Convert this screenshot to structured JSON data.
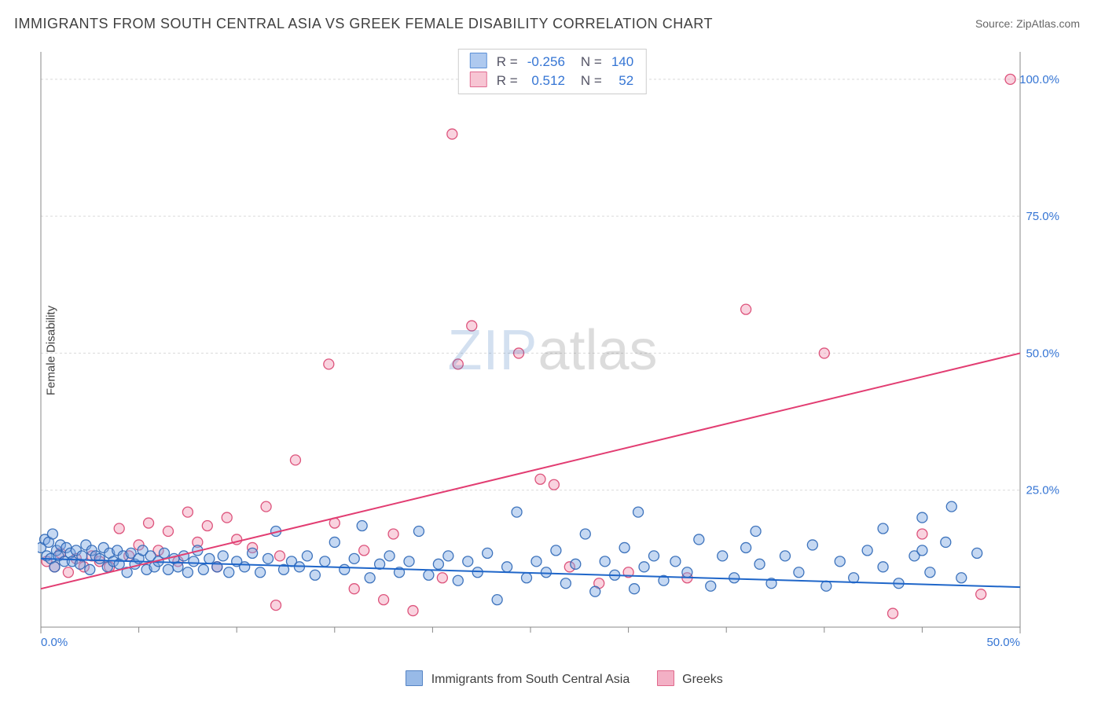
{
  "title": "IMMIGRANTS FROM SOUTH CENTRAL ASIA VS GREEK FEMALE DISABILITY CORRELATION CHART",
  "source_label": "Source: ",
  "source_site": "ZipAtlas.com",
  "ylabel": "Female Disability",
  "watermark": {
    "left": "ZIP",
    "right": "atlas"
  },
  "legend_bottom": {
    "series1_label": "Immigrants from South Central Asia",
    "series2_label": "Greeks"
  },
  "stats_box": {
    "rows": [
      {
        "swatch_fill": "#aec9ef",
        "swatch_stroke": "#5a8fd6",
        "R_label": "R =",
        "R_val": "-0.256",
        "N_label": "N =",
        "N_val": "140"
      },
      {
        "swatch_fill": "#f7c5d3",
        "swatch_stroke": "#e16a90",
        "R_label": "R =",
        "R_val": "0.512",
        "N_label": "N =",
        "N_val": "52"
      }
    ]
  },
  "chart": {
    "type": "scatter",
    "background_color": "#ffffff",
    "grid_color": "#d9d9d9",
    "grid_dash": "3,3",
    "axis_color": "#888888",
    "axis_label_color": "#3575d4",
    "xlim": [
      0,
      50
    ],
    "ylim": [
      0,
      105
    ],
    "x_ticks": [
      {
        "v": 0,
        "label": "0.0%"
      },
      {
        "v": 50,
        "label": "50.0%"
      }
    ],
    "x_minor_ticks": [
      5,
      10,
      15,
      20,
      25,
      30,
      35,
      40,
      45
    ],
    "y_ticks": [
      {
        "v": 25,
        "label": "25.0%"
      },
      {
        "v": 50,
        "label": "50.0%"
      },
      {
        "v": 75,
        "label": "75.0%"
      },
      {
        "v": 100,
        "label": "100.0%"
      }
    ],
    "marker_radius": 6.5,
    "marker_stroke_width": 1.3,
    "marker_fill_opacity": 0.45,
    "trend_line_width": 2,
    "series": [
      {
        "name": "Immigrants from South Central Asia",
        "fill": "#7fa9e2",
        "stroke": "#2b66b6",
        "trend": {
          "x1": 0,
          "y1": 12.5,
          "x2": 50,
          "y2": 7.3,
          "color": "#1f66c9"
        },
        "points": [
          [
            0.0,
            14.5
          ],
          [
            0.2,
            16.0
          ],
          [
            0.3,
            13.0
          ],
          [
            0.4,
            15.5
          ],
          [
            0.5,
            12.5
          ],
          [
            0.6,
            17.0
          ],
          [
            0.7,
            11.0
          ],
          [
            0.8,
            14.0
          ],
          [
            0.9,
            13.0
          ],
          [
            1.0,
            15.0
          ],
          [
            1.2,
            12.0
          ],
          [
            1.3,
            14.5
          ],
          [
            1.5,
            13.5
          ],
          [
            1.6,
            12.0
          ],
          [
            1.8,
            14.0
          ],
          [
            2.0,
            11.5
          ],
          [
            2.1,
            13.0
          ],
          [
            2.3,
            15.0
          ],
          [
            2.5,
            10.5
          ],
          [
            2.6,
            14.0
          ],
          [
            2.8,
            13.0
          ],
          [
            3.0,
            12.5
          ],
          [
            3.2,
            14.5
          ],
          [
            3.4,
            11.0
          ],
          [
            3.5,
            13.5
          ],
          [
            3.7,
            12.0
          ],
          [
            3.9,
            14.0
          ],
          [
            4.0,
            11.5
          ],
          [
            4.2,
            13.0
          ],
          [
            4.4,
            10.0
          ],
          [
            4.6,
            13.5
          ],
          [
            4.8,
            11.5
          ],
          [
            5.0,
            12.5
          ],
          [
            5.2,
            14.0
          ],
          [
            5.4,
            10.5
          ],
          [
            5.6,
            13.0
          ],
          [
            5.8,
            11.0
          ],
          [
            6.0,
            12.0
          ],
          [
            6.3,
            13.5
          ],
          [
            6.5,
            10.5
          ],
          [
            6.8,
            12.5
          ],
          [
            7.0,
            11.0
          ],
          [
            7.3,
            13.0
          ],
          [
            7.5,
            10.0
          ],
          [
            7.8,
            12.0
          ],
          [
            8.0,
            14.0
          ],
          [
            8.3,
            10.5
          ],
          [
            8.6,
            12.5
          ],
          [
            9.0,
            11.0
          ],
          [
            9.3,
            13.0
          ],
          [
            9.6,
            10.0
          ],
          [
            10.0,
            12.0
          ],
          [
            10.4,
            11.0
          ],
          [
            10.8,
            13.5
          ],
          [
            11.2,
            10.0
          ],
          [
            11.6,
            12.5
          ],
          [
            12.0,
            17.5
          ],
          [
            12.4,
            10.5
          ],
          [
            12.8,
            12.0
          ],
          [
            13.2,
            11.0
          ],
          [
            13.6,
            13.0
          ],
          [
            14.0,
            9.5
          ],
          [
            14.5,
            12.0
          ],
          [
            15.0,
            15.5
          ],
          [
            15.5,
            10.5
          ],
          [
            16.0,
            12.5
          ],
          [
            16.4,
            18.5
          ],
          [
            16.8,
            9.0
          ],
          [
            17.3,
            11.5
          ],
          [
            17.8,
            13.0
          ],
          [
            18.3,
            10.0
          ],
          [
            18.8,
            12.0
          ],
          [
            19.3,
            17.5
          ],
          [
            19.8,
            9.5
          ],
          [
            20.3,
            11.5
          ],
          [
            20.8,
            13.0
          ],
          [
            21.3,
            8.5
          ],
          [
            21.8,
            12.0
          ],
          [
            22.3,
            10.0
          ],
          [
            22.8,
            13.5
          ],
          [
            23.3,
            5.0
          ],
          [
            23.8,
            11.0
          ],
          [
            24.3,
            21.0
          ],
          [
            24.8,
            9.0
          ],
          [
            25.3,
            12.0
          ],
          [
            25.8,
            10.0
          ],
          [
            26.3,
            14.0
          ],
          [
            26.8,
            8.0
          ],
          [
            27.3,
            11.5
          ],
          [
            27.8,
            17.0
          ],
          [
            28.3,
            6.5
          ],
          [
            28.8,
            12.0
          ],
          [
            29.3,
            9.5
          ],
          [
            29.8,
            14.5
          ],
          [
            30.3,
            7.0
          ],
          [
            30.5,
            21.0
          ],
          [
            30.8,
            11.0
          ],
          [
            31.3,
            13.0
          ],
          [
            31.8,
            8.5
          ],
          [
            32.4,
            12.0
          ],
          [
            33.0,
            10.0
          ],
          [
            33.6,
            16.0
          ],
          [
            34.2,
            7.5
          ],
          [
            34.8,
            13.0
          ],
          [
            35.4,
            9.0
          ],
          [
            36.0,
            14.5
          ],
          [
            36.5,
            17.5
          ],
          [
            36.7,
            11.5
          ],
          [
            37.3,
            8.0
          ],
          [
            38.0,
            13.0
          ],
          [
            38.7,
            10.0
          ],
          [
            39.4,
            15.0
          ],
          [
            40.1,
            7.5
          ],
          [
            40.8,
            12.0
          ],
          [
            41.5,
            9.0
          ],
          [
            42.2,
            14.0
          ],
          [
            43.0,
            18.0
          ],
          [
            43.0,
            11.0
          ],
          [
            43.8,
            8.0
          ],
          [
            44.6,
            13.0
          ],
          [
            45.0,
            20.0
          ],
          [
            45.0,
            14.0
          ],
          [
            45.4,
            10.0
          ],
          [
            46.2,
            15.5
          ],
          [
            46.5,
            22.0
          ],
          [
            47.0,
            9.0
          ],
          [
            47.8,
            13.5
          ]
        ]
      },
      {
        "name": "Greeks",
        "fill": "#f19db7",
        "stroke": "#d9436f",
        "trend": {
          "x1": 0,
          "y1": 7.0,
          "x2": 50,
          "y2": 50.0,
          "color": "#e23d72"
        },
        "points": [
          [
            0.3,
            12.0
          ],
          [
            0.7,
            11.0
          ],
          [
            1.0,
            13.5
          ],
          [
            1.4,
            10.0
          ],
          [
            1.8,
            12.5
          ],
          [
            2.2,
            11.0
          ],
          [
            2.6,
            13.0
          ],
          [
            3.0,
            12.0
          ],
          [
            3.5,
            11.0
          ],
          [
            4.0,
            18.0
          ],
          [
            4.5,
            13.0
          ],
          [
            5.0,
            15.0
          ],
          [
            5.5,
            19.0
          ],
          [
            6.0,
            14.0
          ],
          [
            6.5,
            17.5
          ],
          [
            7.0,
            12.0
          ],
          [
            7.5,
            21.0
          ],
          [
            8.0,
            15.5
          ],
          [
            8.5,
            18.5
          ],
          [
            9.0,
            11.0
          ],
          [
            9.5,
            20.0
          ],
          [
            10.0,
            16.0
          ],
          [
            10.8,
            14.5
          ],
          [
            11.5,
            22.0
          ],
          [
            12.0,
            4.0
          ],
          [
            12.2,
            13.0
          ],
          [
            13.0,
            30.5
          ],
          [
            14.7,
            48.0
          ],
          [
            15.0,
            19.0
          ],
          [
            16.0,
            7.0
          ],
          [
            16.5,
            14.0
          ],
          [
            17.5,
            5.0
          ],
          [
            18.0,
            17.0
          ],
          [
            19.0,
            3.0
          ],
          [
            20.5,
            9.0
          ],
          [
            21.3,
            48.0
          ],
          [
            21.0,
            90.0
          ],
          [
            22.0,
            55.0
          ],
          [
            24.4,
            50.0
          ],
          [
            25.5,
            27.0
          ],
          [
            26.2,
            26.0
          ],
          [
            27.0,
            11.0
          ],
          [
            28.5,
            8.0
          ],
          [
            30.0,
            10.0
          ],
          [
            33.0,
            9.0
          ],
          [
            36.0,
            58.0
          ],
          [
            40.0,
            50.0
          ],
          [
            43.5,
            2.5
          ],
          [
            45.0,
            17.0
          ],
          [
            48.0,
            6.0
          ],
          [
            49.5,
            100.0
          ]
        ]
      }
    ]
  }
}
